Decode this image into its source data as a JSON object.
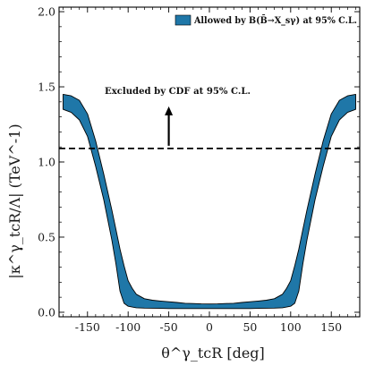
{
  "chart_data": {
    "type": "area",
    "xlabel": "θ^γ_tcR [deg]",
    "ylabel": "|κ^γ_tcR/Λ| (TeV^-1)",
    "xlim": [
      -185,
      185
    ],
    "ylim": [
      -0.03,
      2.03
    ],
    "x_ticks": [
      -150,
      -100,
      -50,
      0,
      50,
      100,
      150
    ],
    "y_ticks": [
      0.0,
      0.5,
      1.0,
      1.5,
      2.0
    ],
    "x_tick_labels": [
      "-150",
      "-100",
      "-50",
      "0",
      "50",
      "100",
      "150"
    ],
    "y_tick_labels": [
      "0.0",
      "0.5",
      "1.0",
      "1.5",
      "2.0"
    ],
    "grid": false,
    "legend": {
      "position": "top-right",
      "entries": [
        {
          "label": "Allowed by B(B̄→X_sγ) at 95% C.L.",
          "color": "#1f77a8"
        }
      ]
    },
    "series": [
      {
        "name": "Allowed by B(B̄→X_sγ) at 95% C.L.",
        "color": "#1f77a8",
        "kind": "band",
        "x": [
          -180,
          -170,
          -160,
          -150,
          -140,
          -130,
          -120,
          -115,
          -110,
          -105,
          -100,
          -95,
          -90,
          -80,
          -70,
          -60,
          -50,
          -40,
          -30,
          -20,
          -10,
          0,
          10,
          20,
          30,
          40,
          50,
          60,
          70,
          80,
          90,
          95,
          100,
          105,
          110,
          115,
          120,
          130,
          140,
          150,
          160,
          170,
          180
        ],
        "upper": [
          1.45,
          1.44,
          1.41,
          1.32,
          1.14,
          0.92,
          0.68,
          0.55,
          0.42,
          0.31,
          0.21,
          0.16,
          0.12,
          0.09,
          0.08,
          0.075,
          0.07,
          0.065,
          0.06,
          0.058,
          0.056,
          0.055,
          0.056,
          0.058,
          0.06,
          0.065,
          0.07,
          0.075,
          0.08,
          0.09,
          0.12,
          0.16,
          0.21,
          0.31,
          0.42,
          0.55,
          0.68,
          0.92,
          1.14,
          1.32,
          1.41,
          1.44,
          1.45
        ],
        "lower": [
          1.35,
          1.33,
          1.28,
          1.17,
          0.97,
          0.75,
          0.48,
          0.32,
          0.14,
          0.06,
          0.04,
          0.035,
          0.03,
          0.028,
          0.027,
          0.026,
          0.025,
          0.025,
          0.025,
          0.025,
          0.025,
          0.025,
          0.025,
          0.025,
          0.025,
          0.025,
          0.025,
          0.026,
          0.027,
          0.028,
          0.03,
          0.035,
          0.04,
          0.06,
          0.14,
          0.32,
          0.48,
          0.75,
          0.97,
          1.17,
          1.28,
          1.33,
          1.35
        ]
      }
    ],
    "reference_line": {
      "y": 1.09,
      "style": "dashed",
      "label": "Excluded by CDF at 95% C.L."
    },
    "annotation_arrow": {
      "x": -50,
      "y_from": 1.09,
      "y_to": 1.37,
      "direction": "up"
    }
  }
}
